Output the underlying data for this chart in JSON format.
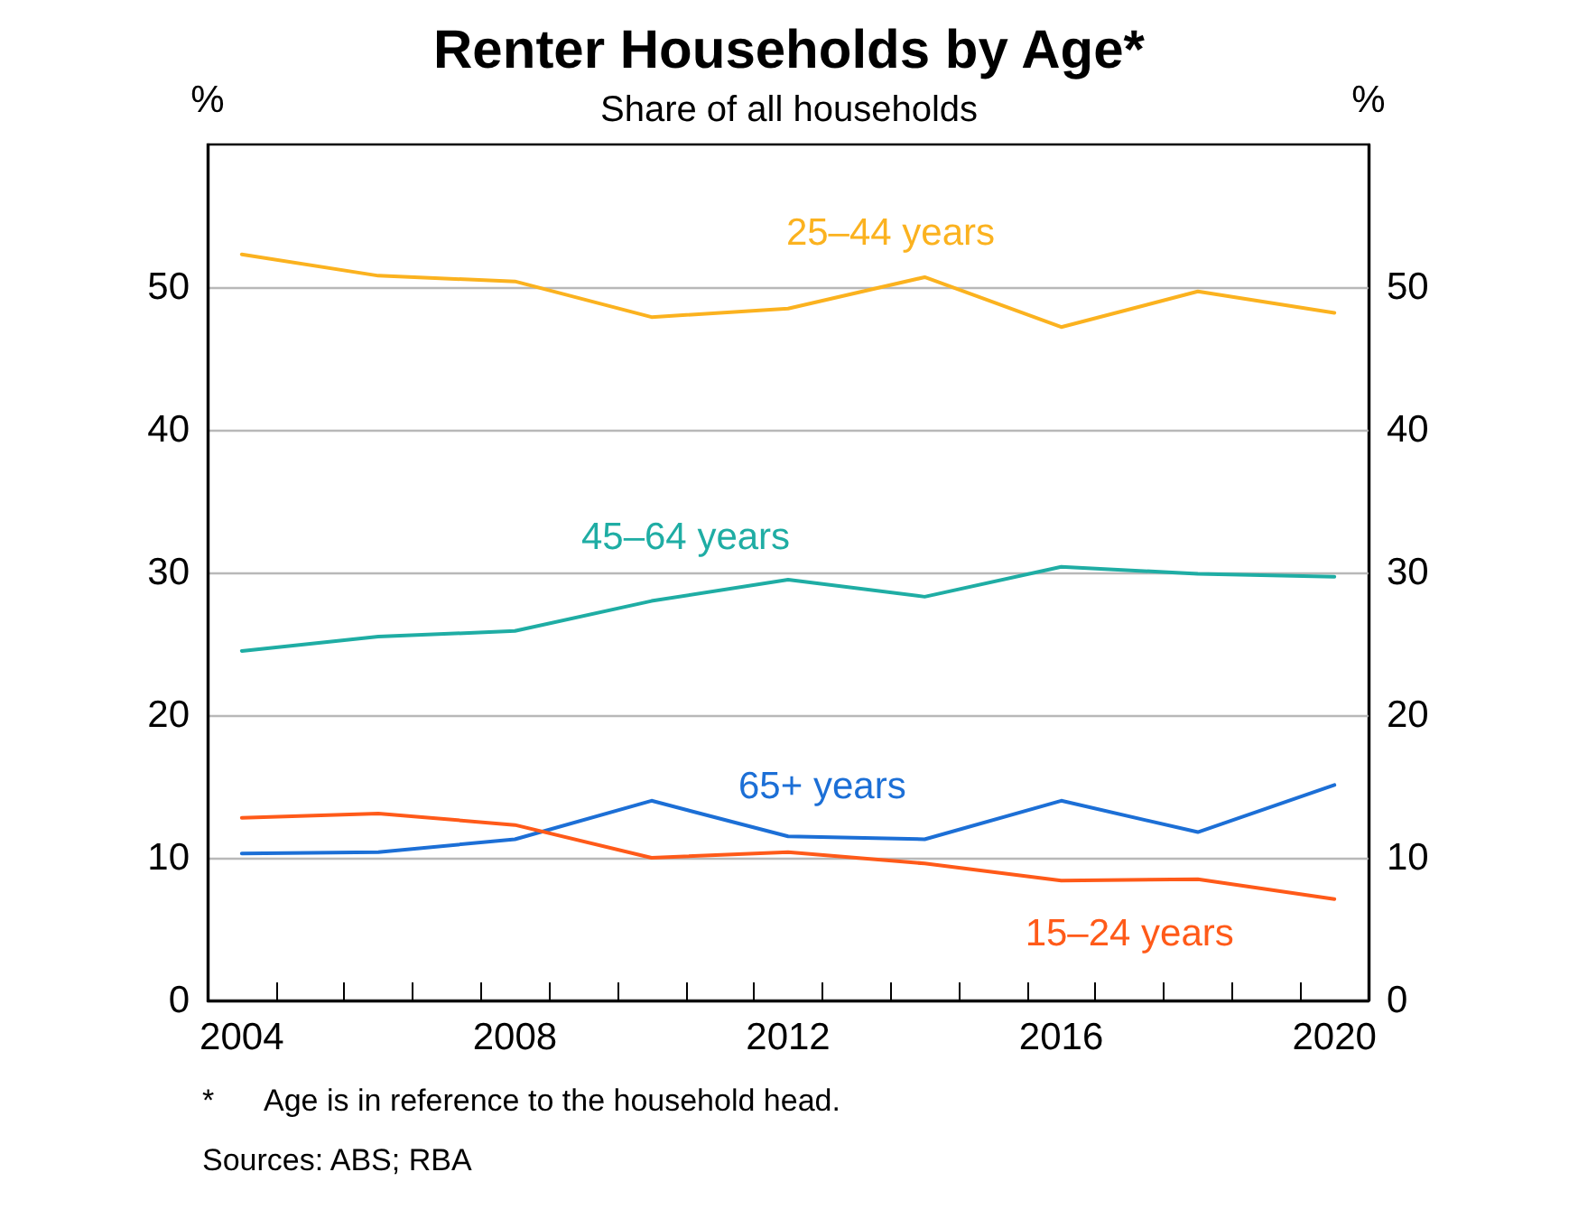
{
  "chart_data": {
    "type": "line",
    "title": "Renter Households by Age*",
    "subtitle": "Share of all households",
    "ylabel": "%",
    "y2label": "%",
    "annotations": [
      "*      Age is in reference to the household head.",
      "Sources: ABS; RBA"
    ],
    "x": [
      2004.5,
      2006.5,
      2008.5,
      2010.5,
      2012.5,
      2014.5,
      2016.5,
      2018.5,
      2020.5
    ],
    "series": [
      {
        "name": "25–44 years",
        "color": "#fbb21f",
        "values": [
          52.3,
          50.8,
          50.4,
          47.9,
          48.5,
          50.7,
          47.2,
          49.7,
          48.2
        ]
      },
      {
        "name": "45–64 years",
        "color": "#1fada4",
        "values": [
          24.5,
          25.5,
          25.9,
          28.0,
          29.5,
          28.3,
          30.4,
          29.9,
          29.7
        ]
      },
      {
        "name": "65+ years",
        "color": "#1c6fd6",
        "values": [
          10.3,
          10.4,
          11.3,
          14.0,
          11.5,
          11.3,
          14.0,
          11.8,
          15.1
        ]
      },
      {
        "name": "15–24 years",
        "color": "#ff5a19",
        "values": [
          12.8,
          13.1,
          12.3,
          10.0,
          10.4,
          9.6,
          8.4,
          8.5,
          7.1
        ]
      }
    ],
    "xlim": [
      2004,
      2021
    ],
    "xticks": [
      {
        "value": 2004.5,
        "label": "2004"
      },
      {
        "value": 2008.5,
        "label": "2008"
      },
      {
        "value": 2012.5,
        "label": "2012"
      },
      {
        "value": 2016.5,
        "label": "2016"
      },
      {
        "value": 2020.5,
        "label": "2020"
      },
      {
        "value": 2005,
        "label": null
      },
      {
        "value": 2006,
        "label": null
      },
      {
        "value": 2007,
        "label": null
      },
      {
        "value": 2008,
        "label": null
      },
      {
        "value": 2009,
        "label": null
      },
      {
        "value": 2010,
        "label": null
      },
      {
        "value": 2011,
        "label": null
      },
      {
        "value": 2012,
        "label": null
      },
      {
        "value": 2013,
        "label": null
      },
      {
        "value": 2014,
        "label": null
      },
      {
        "value": 2015,
        "label": null
      },
      {
        "value": 2016,
        "label": null
      },
      {
        "value": 2017,
        "label": null
      },
      {
        "value": 2018,
        "label": null
      },
      {
        "value": 2019,
        "label": null
      },
      {
        "value": 2020,
        "label": null
      }
    ],
    "ylim": [
      0,
      60
    ],
    "yticks": [
      0,
      10,
      20,
      30,
      40,
      50
    ],
    "y2lim": [
      0,
      60
    ],
    "y2ticks": [
      0,
      10,
      20,
      30,
      40,
      50
    ],
    "grid": "y",
    "legend": false,
    "marker": "none",
    "line_style": "solid"
  }
}
